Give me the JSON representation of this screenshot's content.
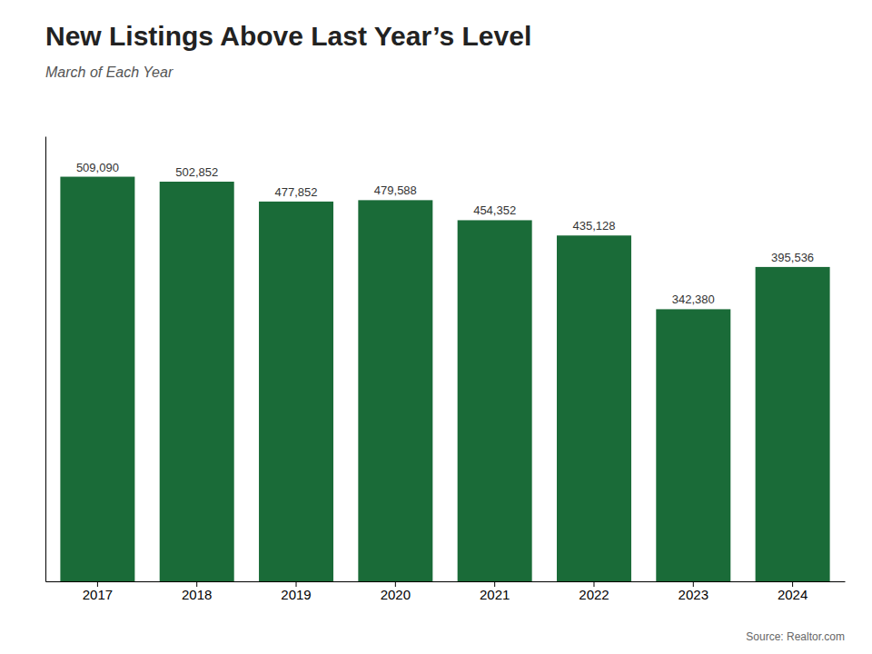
{
  "chart_data": {
    "type": "bar",
    "title": "New Listings Above Last Year’s Level",
    "subtitle": "March of Each Year",
    "source": "Source: Realtor.com",
    "categories": [
      "2017",
      "2018",
      "2019",
      "2020",
      "2021",
      "2022",
      "2023",
      "2024"
    ],
    "values": [
      509090,
      502852,
      477852,
      479588,
      454352,
      435128,
      342380,
      395536
    ],
    "value_labels": [
      "509,090",
      "502,852",
      "477,852",
      "479,588",
      "454,352",
      "435,128",
      "342,380",
      "395,536"
    ],
    "color": "#1a6b38",
    "ylim": [
      0,
      560000
    ],
    "data_labels": true,
    "tick_labels": "x",
    "grid": false
  }
}
